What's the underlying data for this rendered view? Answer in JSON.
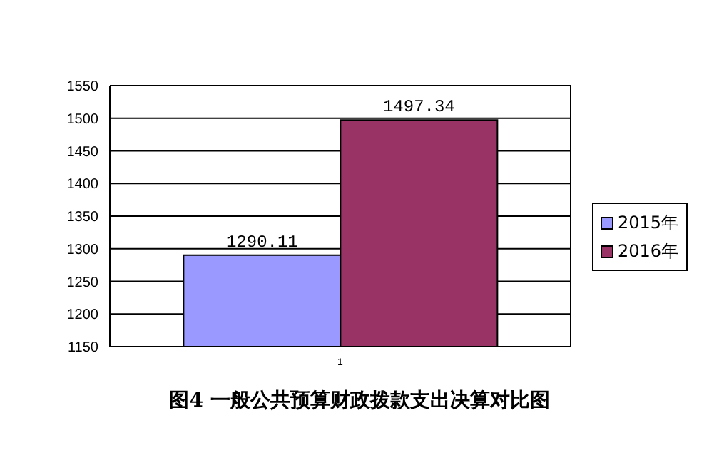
{
  "chart_data": {
    "type": "bar",
    "title": "图4  一般公共预算财政拨款支出决算对比图",
    "categories": [
      "1"
    ],
    "series": [
      {
        "name": "2015年",
        "color": "#9999ff",
        "values": [
          1290.11
        ]
      },
      {
        "name": "2016年",
        "color": "#993366",
        "values": [
          1497.34
        ]
      }
    ],
    "ylim": [
      1150,
      1550
    ],
    "yticks": [
      1150,
      1200,
      1250,
      1300,
      1350,
      1400,
      1450,
      1500,
      1550
    ],
    "grid": "y",
    "legend": "right",
    "data_labels": true
  }
}
